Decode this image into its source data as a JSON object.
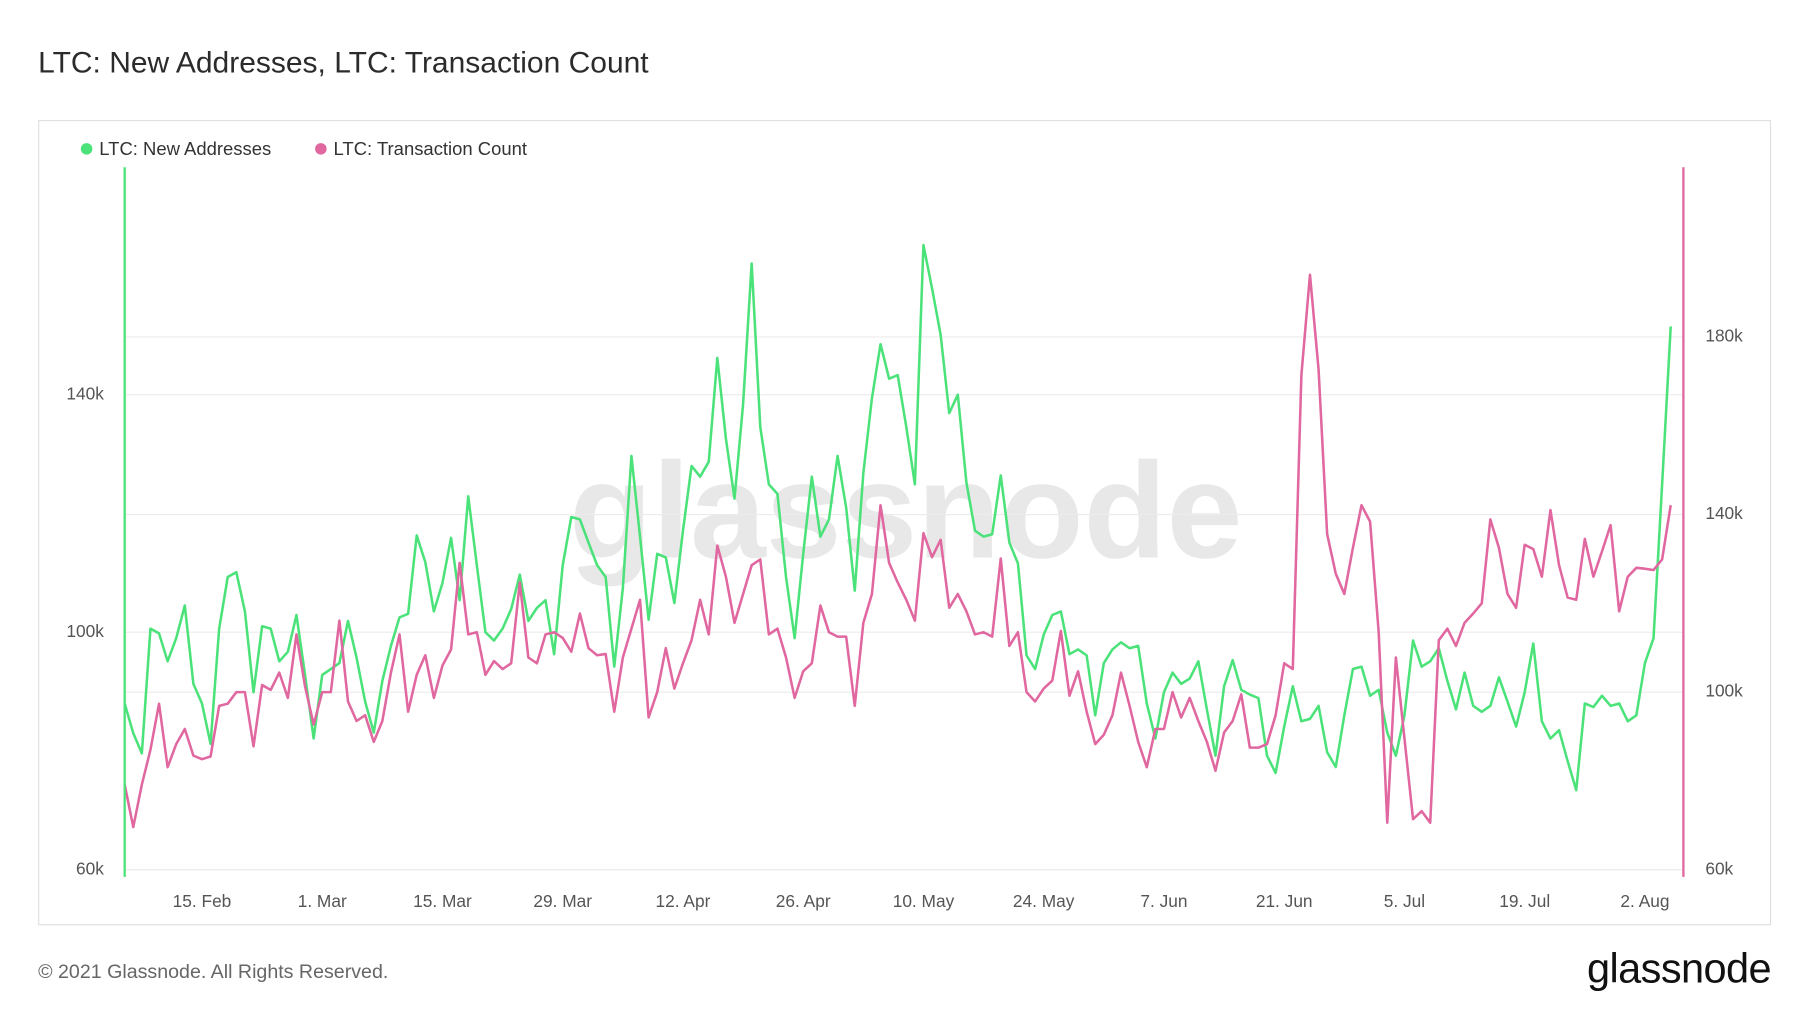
{
  "chart_data": {
    "type": "line",
    "title": "LTC: New Addresses, LTC: Transaction Count",
    "watermark": "glassnode",
    "footer": "© 2021 Glassnode. All Rights Reserved.",
    "logo": "glassnode",
    "legend": "top-left",
    "grid": true,
    "categories": [
      null,
      null,
      null,
      null,
      null,
      null,
      null,
      null,
      null,
      "15. Feb",
      null,
      null,
      null,
      null,
      null,
      null,
      null,
      null,
      null,
      null,
      null,
      null,
      null,
      "1. Mar",
      null,
      null,
      null,
      null,
      null,
      null,
      null,
      null,
      null,
      null,
      null,
      null,
      null,
      "15. Mar",
      null,
      null,
      null,
      null,
      null,
      null,
      null,
      null,
      null,
      null,
      null,
      null,
      null,
      "29. Mar",
      null,
      null,
      null,
      null,
      null,
      null,
      null,
      null,
      null,
      null,
      null,
      null,
      null,
      "12. Apr",
      null,
      null,
      null,
      null,
      null,
      null,
      null,
      null,
      null,
      null,
      null,
      null,
      null,
      "26. Apr",
      null,
      null,
      null,
      null,
      null,
      null,
      null,
      null,
      null,
      null,
      null,
      null,
      null,
      "10. May",
      null,
      null,
      null,
      null,
      null,
      null,
      null,
      null,
      null,
      null,
      null,
      null,
      null,
      "24. May",
      null,
      null,
      null,
      null,
      null,
      null,
      null,
      null,
      null,
      null,
      null,
      null,
      null,
      "7. Jun",
      null,
      null,
      null,
      null,
      null,
      null,
      null,
      null,
      null,
      null,
      null,
      null,
      null,
      "21. Jun",
      null,
      null,
      null,
      null,
      null,
      null,
      null,
      null,
      null,
      null,
      null,
      null,
      null,
      "5. Jul",
      null,
      null,
      null,
      null,
      null,
      null,
      null,
      null,
      null,
      null,
      null,
      null,
      null,
      "19. Jul",
      null,
      null,
      null,
      null,
      null,
      null,
      null,
      null,
      null,
      null,
      null,
      null,
      null,
      "2. Aug",
      null,
      null,
      null
    ],
    "ylim": [
      58800,
      178300
    ],
    "yticks": [
      {
        "value": 60000,
        "label": "60k"
      },
      {
        "value": 100000,
        "label": "100k"
      },
      {
        "value": 140000,
        "label": "140k"
      }
    ],
    "y2lim": [
      58400,
      218200
    ],
    "y2ticks": [
      {
        "value": 60000,
        "label": "60k"
      },
      {
        "value": 100000,
        "label": "100k"
      },
      {
        "value": 140000,
        "label": "140k"
      },
      {
        "value": 180000,
        "label": "180k"
      }
    ],
    "series": [
      {
        "name": "LTC: New Addresses",
        "color": "#4be27a",
        "axis": "y",
        "values": [
          88000,
          83000,
          79600,
          100600,
          99800,
          95100,
          99000,
          104500,
          91300,
          88000,
          81200,
          100600,
          109300,
          110100,
          103500,
          89900,
          101000,
          100600,
          95100,
          96700,
          102900,
          92800,
          82100,
          92800,
          93800,
          94800,
          101900,
          95700,
          88300,
          83100,
          91800,
          97700,
          102500,
          103100,
          116300,
          111800,
          103500,
          108300,
          115900,
          105400,
          122900,
          111300,
          100000,
          98600,
          100600,
          103900,
          109700,
          101900,
          104100,
          105400,
          96300,
          111300,
          119400,
          119000,
          115100,
          111300,
          109300,
          94200,
          107400,
          129700,
          116100,
          102100,
          113200,
          112600,
          104900,
          117100,
          128000,
          126200,
          128700,
          146200,
          132600,
          122500,
          138400,
          162100,
          134600,
          124900,
          123300,
          109300,
          99000,
          113200,
          126200,
          116100,
          119000,
          129700,
          121000,
          107000,
          126800,
          139400,
          148500,
          142700,
          143300,
          134600,
          124900,
          165200,
          157900,
          150100,
          136900,
          140000,
          125200,
          117100,
          116100,
          116500,
          126400,
          115100,
          111600,
          96100,
          93800,
          99600,
          102900,
          103500,
          96300,
          97100,
          96100,
          86000,
          94800,
          97100,
          98300,
          97300,
          97700,
          88000,
          82100,
          89900,
          93200,
          91300,
          92200,
          95100,
          87000,
          79200,
          90900,
          95300,
          90300,
          89500,
          88900,
          79200,
          76300,
          84100,
          90900,
          85000,
          85400,
          87600,
          79800,
          77300,
          86000,
          93800,
          94200,
          89300,
          90300,
          83100,
          79200,
          86000,
          98600,
          94200,
          95100,
          97300,
          91800,
          87000,
          93200,
          87600,
          86600,
          87600,
          92400,
          88300,
          84100,
          89900,
          98100,
          85000,
          82100,
          83500,
          78300,
          73400,
          88000,
          87400,
          89300,
          87600,
          88000,
          85000,
          86000,
          94800,
          99000,
          124900,
          151500
        ]
      },
      {
        "name": "LTC: Transaction Count",
        "color": "#e0679f",
        "axis": "y2",
        "values": [
          79200,
          69600,
          79200,
          87000,
          97400,
          83100,
          88300,
          91700,
          85700,
          84900,
          85500,
          96900,
          97400,
          100000,
          100000,
          87800,
          101600,
          100500,
          104400,
          98700,
          113000,
          101300,
          92700,
          100000,
          100000,
          116100,
          97900,
          93500,
          94800,
          88800,
          93500,
          104400,
          113000,
          95600,
          103900,
          108300,
          98700,
          106000,
          109600,
          129100,
          113000,
          113500,
          103900,
          107000,
          105200,
          106500,
          124700,
          107800,
          106500,
          113000,
          113500,
          112200,
          109100,
          117700,
          109900,
          108300,
          108600,
          95600,
          107800,
          114300,
          120800,
          94300,
          100000,
          109900,
          100800,
          106500,
          111700,
          120800,
          113000,
          133000,
          126000,
          115600,
          122100,
          128600,
          129900,
          113000,
          114300,
          107800,
          98700,
          104700,
          106500,
          119500,
          113500,
          112500,
          112500,
          96900,
          115600,
          122100,
          142100,
          129100,
          124700,
          120800,
          116100,
          135800,
          130400,
          134300,
          119000,
          122100,
          118200,
          113000,
          113500,
          112500,
          130100,
          110400,
          113500,
          100000,
          97900,
          100800,
          102600,
          113800,
          99200,
          104700,
          95600,
          88300,
          90400,
          94800,
          104400,
          96900,
          88800,
          83100,
          91700,
          91700,
          100000,
          94300,
          98700,
          93500,
          88800,
          82300,
          90900,
          93500,
          99500,
          87500,
          87500,
          88300,
          94800,
          106500,
          105200,
          171400,
          194000,
          172700,
          135600,
          126700,
          122100,
          132500,
          142100,
          138400,
          113500,
          70600,
          107800,
          89600,
          71400,
          73200,
          70600,
          111700,
          114300,
          110400,
          115600,
          117700,
          120000,
          138900,
          132500,
          122100,
          119000,
          133200,
          132200,
          126000,
          141000,
          128600,
          121300,
          120800,
          134500,
          126000,
          131700,
          137600,
          118200,
          126000,
          128000,
          127800,
          127500,
          129900,
          142100
        ]
      }
    ]
  }
}
